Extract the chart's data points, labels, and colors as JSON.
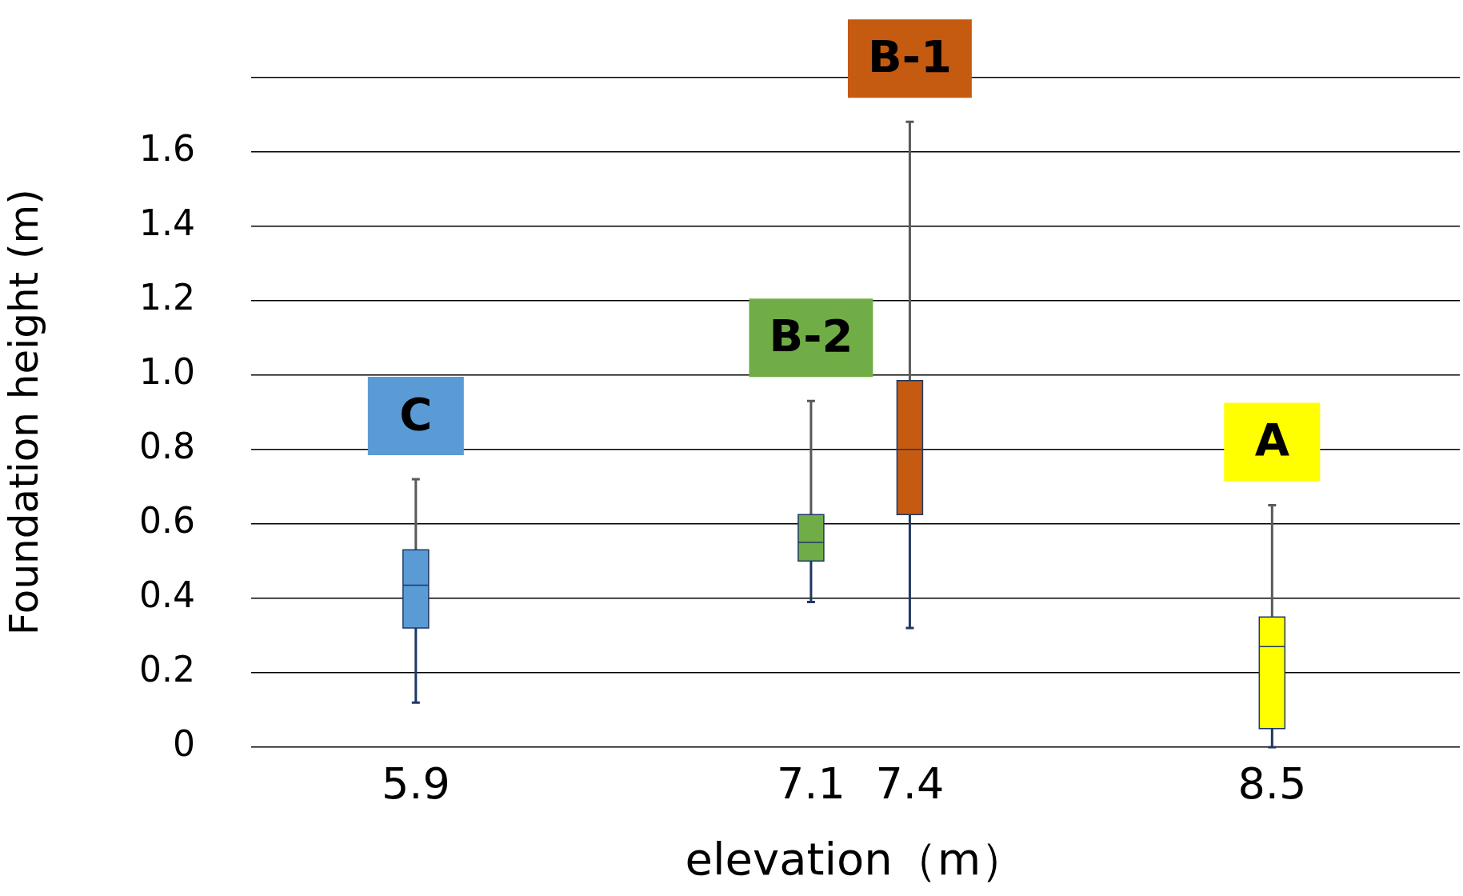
{
  "chart_data": {
    "type": "box",
    "xlabel": "elevation（m）",
    "ylabel": "Foundation height (m)",
    "xlim": [
      5.4,
      9.07
    ],
    "xticks": [
      5.9,
      7.1,
      7.4,
      8.5
    ],
    "ylim": [
      0,
      1.8
    ],
    "yticks": [
      0,
      0.2,
      0.4,
      0.6,
      0.8,
      {
        "value": 1.0,
        "label": "1.0"
      },
      1.2,
      1.4,
      1.6,
      {
        "value": 1.8,
        "label": null
      }
    ],
    "grid": "y",
    "legend": false,
    "series": [
      {
        "name": "C",
        "color": "#5b9bd5",
        "x": [
          5.9
        ],
        "boxes": [
          {
            "low": 0.12,
            "q1": 0.32,
            "median": 0.435,
            "q3": 0.53,
            "high": 0.72
          }
        ]
      },
      {
        "name": "B-2",
        "color": "#70ad47",
        "x": [
          7.1
        ],
        "boxes": [
          {
            "low": 0.39,
            "q1": 0.5,
            "median": 0.55,
            "q3": 0.625,
            "high": 0.93
          }
        ]
      },
      {
        "name": "B-1",
        "color": "#c55a11",
        "x": [
          7.4
        ],
        "boxes": [
          {
            "low": 0.32,
            "q1": 0.625,
            "median": 0.8,
            "q3": 0.985,
            "high": 1.68
          }
        ]
      },
      {
        "name": "A",
        "color": "#ffff00",
        "x": [
          8.5
        ],
        "boxes": [
          {
            "low": 0,
            "q1": 0.05,
            "median": 0.27,
            "q3": 0.35,
            "high": 0.65
          }
        ]
      }
    ]
  }
}
